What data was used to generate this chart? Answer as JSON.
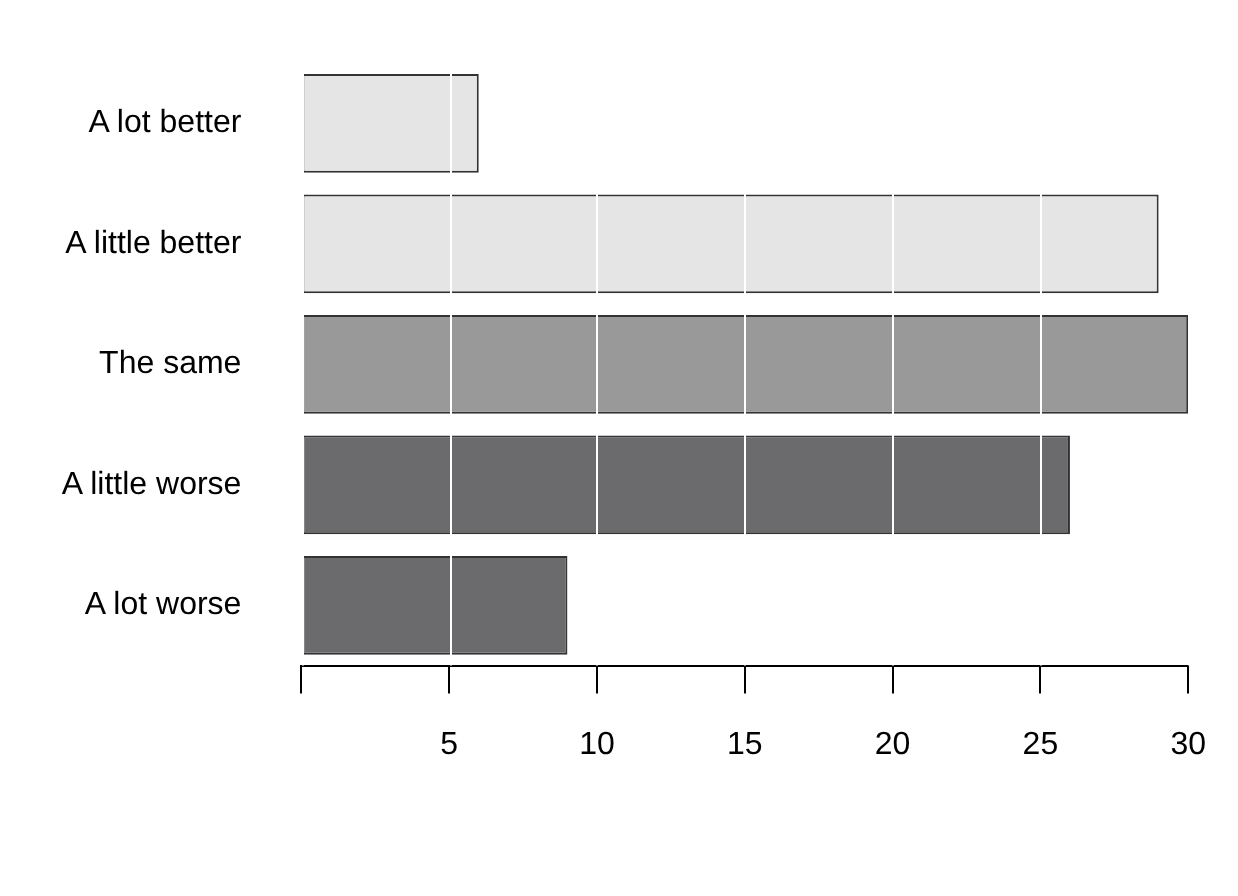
{
  "chart_data": {
    "type": "bar",
    "orientation": "horizontal",
    "categories": [
      "A lot better",
      "A little better",
      "The same",
      "A little worse",
      "A lot worse"
    ],
    "values": [
      6,
      29,
      30,
      26,
      9
    ],
    "colors": [
      "#e5e5e5",
      "#e5e5e5",
      "#999999",
      "#6b6b6e",
      "#6b6b6e"
    ],
    "xlim": [
      0,
      30
    ],
    "xticks": [
      {
        "value": 0,
        "label": null
      },
      5,
      10,
      15,
      20,
      25,
      30
    ],
    "grid": "x",
    "legend": false
  }
}
